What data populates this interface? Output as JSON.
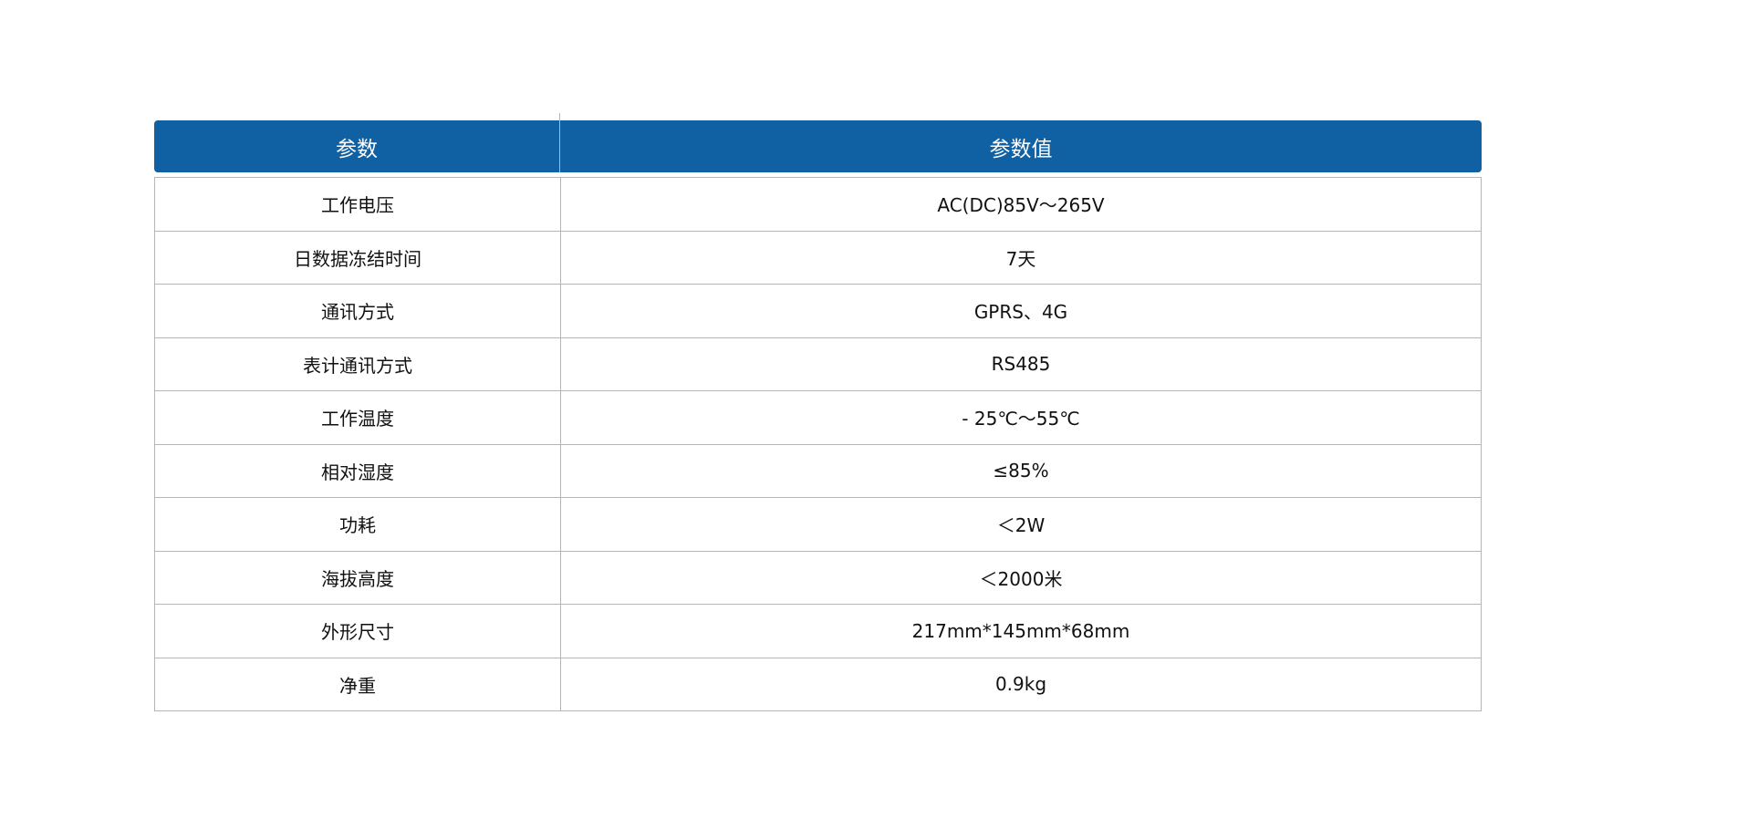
{
  "header": {
    "param": "参数",
    "value": "参数值"
  },
  "brand_color": "#1060a4",
  "rows": [
    {
      "param": "工作电压",
      "value": "AC(DC)85V～265V"
    },
    {
      "param": "日数据冻结时间",
      "value": "7天"
    },
    {
      "param": "通讯方式",
      "value": "GPRS、4G"
    },
    {
      "param": "表计通讯方式",
      "value": "RS485"
    },
    {
      "param": "工作温度",
      "value": "- 25℃～55℃"
    },
    {
      "param": "相对湿度",
      "value": "≤85%"
    },
    {
      "param": "功耗",
      "value": "＜2W"
    },
    {
      "param": "海拔高度",
      "value": "＜2000米"
    },
    {
      "param": "外形尺寸",
      "value": "217mm*145mm*68mm"
    },
    {
      "param": "净重",
      "value": "0.9kg"
    }
  ]
}
